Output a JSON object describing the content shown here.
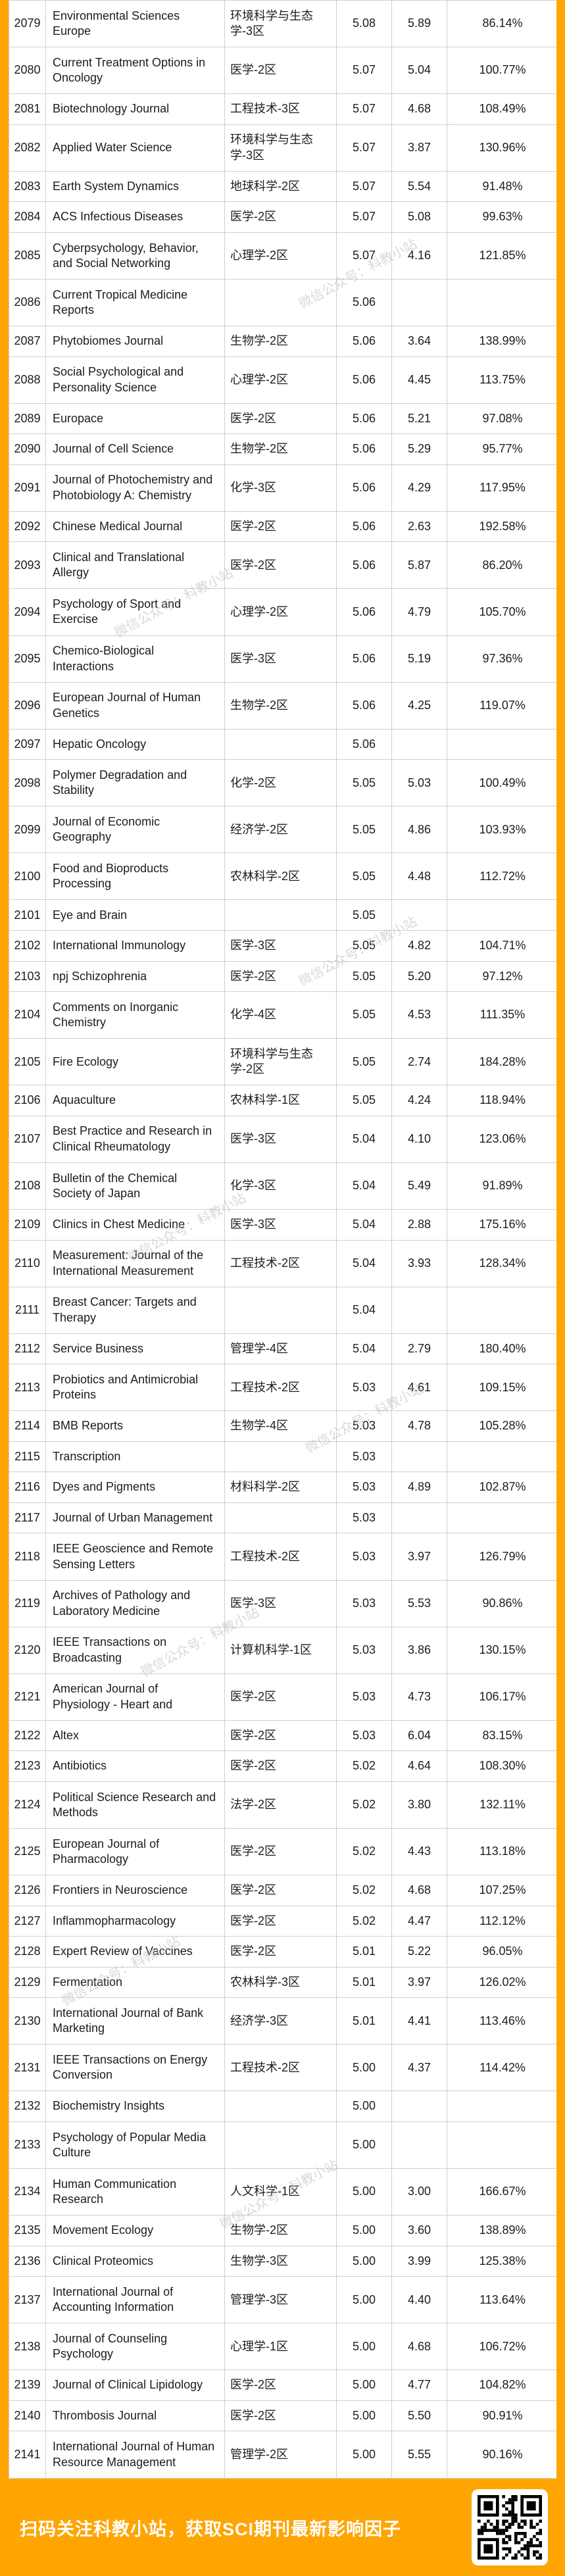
{
  "colors": {
    "accent": "#ffa502",
    "grid": "#cfcfcf",
    "text": "#1c1c1c",
    "watermark": "#b9b9b9"
  },
  "watermark": {
    "text": "微信公众号：科教小站"
  },
  "banner": {
    "text": "扫码关注科教小站，获取SCI期刊最新影响因子",
    "qr_icon": "qr-code"
  },
  "chart_data": {
    "type": "table",
    "columns": [
      "row_number",
      "journal_name",
      "cas_partition",
      "impact_factor",
      "previous_impact_factor",
      "change_percent"
    ],
    "rows": [
      [
        "2079",
        "Environmental Sciences Europe",
        "环境科学与生态学-3区",
        "5.08",
        "5.89",
        "86.14%"
      ],
      [
        "2080",
        "Current Treatment Options in Oncology",
        "医学-2区",
        "5.07",
        "5.04",
        "100.77%"
      ],
      [
        "2081",
        "Biotechnology Journal",
        "工程技术-3区",
        "5.07",
        "4.68",
        "108.49%"
      ],
      [
        "2082",
        "Applied Water Science",
        "环境科学与生态学-3区",
        "5.07",
        "3.87",
        "130.96%"
      ],
      [
        "2083",
        "Earth System Dynamics",
        "地球科学-2区",
        "5.07",
        "5.54",
        "91.48%"
      ],
      [
        "2084",
        "ACS Infectious Diseases",
        "医学-2区",
        "5.07",
        "5.08",
        "99.63%"
      ],
      [
        "2085",
        "Cyberpsychology, Behavior, and Social Networking",
        "心理学-2区",
        "5.07",
        "4.16",
        "121.85%"
      ],
      [
        "2086",
        "Current Tropical Medicine Reports",
        "",
        "5.06",
        "",
        ""
      ],
      [
        "2087",
        "Phytobiomes Journal",
        "生物学-2区",
        "5.06",
        "3.64",
        "138.99%"
      ],
      [
        "2088",
        "Social Psychological and Personality Science",
        "心理学-2区",
        "5.06",
        "4.45",
        "113.75%"
      ],
      [
        "2089",
        "Europace",
        "医学-2区",
        "5.06",
        "5.21",
        "97.08%"
      ],
      [
        "2090",
        "Journal of Cell Science",
        "生物学-2区",
        "5.06",
        "5.29",
        "95.77%"
      ],
      [
        "2091",
        "Journal of Photochemistry and Photobiology A: Chemistry",
        "化学-3区",
        "5.06",
        "4.29",
        "117.95%"
      ],
      [
        "2092",
        "Chinese Medical Journal",
        "医学-2区",
        "5.06",
        "2.63",
        "192.58%"
      ],
      [
        "2093",
        "Clinical and Translational Allergy",
        "医学-2区",
        "5.06",
        "5.87",
        "86.20%"
      ],
      [
        "2094",
        "Psychology of Sport and Exercise",
        "心理学-2区",
        "5.06",
        "4.79",
        "105.70%"
      ],
      [
        "2095",
        "Chemico-Biological Interactions",
        "医学-3区",
        "5.06",
        "5.19",
        "97.36%"
      ],
      [
        "2096",
        "European Journal of Human Genetics",
        "生物学-2区",
        "5.06",
        "4.25",
        "119.07%"
      ],
      [
        "2097",
        "Hepatic Oncology",
        "",
        "5.06",
        "",
        ""
      ],
      [
        "2098",
        "Polymer Degradation and Stability",
        "化学-2区",
        "5.05",
        "5.03",
        "100.49%"
      ],
      [
        "2099",
        "Journal of Economic Geography",
        "经济学-2区",
        "5.05",
        "4.86",
        "103.93%"
      ],
      [
        "2100",
        "Food and Bioproducts Processing",
        "农林科学-2区",
        "5.05",
        "4.48",
        "112.72%"
      ],
      [
        "2101",
        "Eye and Brain",
        "",
        "5.05",
        "",
        ""
      ],
      [
        "2102",
        "International Immunology",
        "医学-3区",
        "5.05",
        "4.82",
        "104.71%"
      ],
      [
        "2103",
        "npj Schizophrenia",
        "医学-2区",
        "5.05",
        "5.20",
        "97.12%"
      ],
      [
        "2104",
        "Comments on Inorganic Chemistry",
        "化学-4区",
        "5.05",
        "4.53",
        "111.35%"
      ],
      [
        "2105",
        "Fire Ecology",
        "环境科学与生态学-2区",
        "5.05",
        "2.74",
        "184.28%"
      ],
      [
        "2106",
        "Aquaculture",
        "农林科学-1区",
        "5.05",
        "4.24",
        "118.94%"
      ],
      [
        "2107",
        "Best Practice and Research in Clinical Rheumatology",
        "医学-3区",
        "5.04",
        "4.10",
        "123.06%"
      ],
      [
        "2108",
        "Bulletin of the Chemical Society of Japan",
        "化学-3区",
        "5.04",
        "5.49",
        "91.89%"
      ],
      [
        "2109",
        "Clinics in Chest Medicine",
        "医学-3区",
        "5.04",
        "2.88",
        "175.16%"
      ],
      [
        "2110",
        "Measurement: Journal of the International Measurement",
        "工程技术-2区",
        "5.04",
        "3.93",
        "128.34%"
      ],
      [
        "2111",
        "Breast Cancer: Targets and Therapy",
        "",
        "5.04",
        "",
        ""
      ],
      [
        "2112",
        "Service Business",
        "管理学-4区",
        "5.04",
        "2.79",
        "180.40%"
      ],
      [
        "2113",
        "Probiotics and Antimicrobial Proteins",
        "工程技术-2区",
        "5.03",
        "4.61",
        "109.15%"
      ],
      [
        "2114",
        "BMB Reports",
        "生物学-4区",
        "5.03",
        "4.78",
        "105.28%"
      ],
      [
        "2115",
        "Transcription",
        "",
        "5.03",
        "",
        ""
      ],
      [
        "2116",
        "Dyes and Pigments",
        "材料科学-2区",
        "5.03",
        "4.89",
        "102.87%"
      ],
      [
        "2117",
        "Journal of Urban Management",
        "",
        "5.03",
        "",
        ""
      ],
      [
        "2118",
        "IEEE Geoscience and Remote Sensing Letters",
        "工程技术-2区",
        "5.03",
        "3.97",
        "126.79%"
      ],
      [
        "2119",
        "Archives of Pathology and Laboratory Medicine",
        "医学-3区",
        "5.03",
        "5.53",
        "90.86%"
      ],
      [
        "2120",
        "IEEE Transactions on Broadcasting",
        "计算机科学-1区",
        "5.03",
        "3.86",
        "130.15%"
      ],
      [
        "2121",
        "American Journal of Physiology - Heart and",
        "医学-2区",
        "5.03",
        "4.73",
        "106.17%"
      ],
      [
        "2122",
        "Altex",
        "医学-2区",
        "5.03",
        "6.04",
        "83.15%"
      ],
      [
        "2123",
        "Antibiotics",
        "医学-2区",
        "5.02",
        "4.64",
        "108.30%"
      ],
      [
        "2124",
        "Political Science Research and Methods",
        "法学-2区",
        "5.02",
        "3.80",
        "132.11%"
      ],
      [
        "2125",
        "European Journal of Pharmacology",
        "医学-2区",
        "5.02",
        "4.43",
        "113.18%"
      ],
      [
        "2126",
        "Frontiers in Neuroscience",
        "医学-2区",
        "5.02",
        "4.68",
        "107.25%"
      ],
      [
        "2127",
        "Inflammopharmacology",
        "医学-2区",
        "5.02",
        "4.47",
        "112.12%"
      ],
      [
        "2128",
        "Expert Review of Vaccines",
        "医学-2区",
        "5.01",
        "5.22",
        "96.05%"
      ],
      [
        "2129",
        "Fermentation",
        "农林科学-3区",
        "5.01",
        "3.97",
        "126.02%"
      ],
      [
        "2130",
        "International Journal of Bank Marketing",
        "经济学-3区",
        "5.01",
        "4.41",
        "113.46%"
      ],
      [
        "2131",
        "IEEE Transactions on Energy Conversion",
        "工程技术-2区",
        "5.00",
        "4.37",
        "114.42%"
      ],
      [
        "2132",
        "Biochemistry Insights",
        "",
        "5.00",
        "",
        ""
      ],
      [
        "2133",
        "Psychology of Popular Media Culture",
        "",
        "5.00",
        "",
        ""
      ],
      [
        "2134",
        "Human Communication Research",
        "人文科学-1区",
        "5.00",
        "3.00",
        "166.67%"
      ],
      [
        "2135",
        "Movement Ecology",
        "生物学-2区",
        "5.00",
        "3.60",
        "138.89%"
      ],
      [
        "2136",
        "Clinical Proteomics",
        "生物学-3区",
        "5.00",
        "3.99",
        "125.38%"
      ],
      [
        "2137",
        "International Journal of Accounting Information",
        "管理学-3区",
        "5.00",
        "4.40",
        "113.64%"
      ],
      [
        "2138",
        "Journal of Counseling Psychology",
        "心理学-1区",
        "5.00",
        "4.68",
        "106.72%"
      ],
      [
        "2139",
        "Journal of Clinical Lipidology",
        "医学-2区",
        "5.00",
        "4.77",
        "104.82%"
      ],
      [
        "2140",
        "Thrombosis Journal",
        "医学-2区",
        "5.00",
        "5.50",
        "90.91%"
      ],
      [
        "2141",
        "International Journal of Human Resource Management",
        "管理学-2区",
        "5.00",
        "5.55",
        "90.16%"
      ]
    ]
  }
}
